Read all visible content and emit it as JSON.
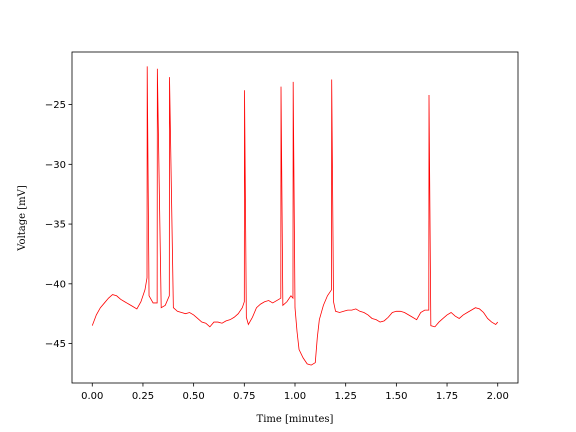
{
  "chart_data": {
    "type": "line",
    "xlabel": "Time [minutes]",
    "ylabel": "Voltage [mV]",
    "xlim": [
      -0.1,
      2.1
    ],
    "ylim": [
      -48.3,
      -20.6
    ],
    "xticks": [
      {
        "value": 0,
        "label": "0.00"
      },
      {
        "value": 0.25,
        "label": "0.25"
      },
      {
        "value": 0.5,
        "label": "0.50"
      },
      {
        "value": 0.75,
        "label": "0.75"
      },
      {
        "value": 1,
        "label": "1.00"
      },
      {
        "value": 1.25,
        "label": "1.25"
      },
      {
        "value": 1.5,
        "label": "1.50"
      },
      {
        "value": 1.75,
        "label": "1.75"
      },
      {
        "value": 2,
        "label": "2.00"
      }
    ],
    "yticks": [
      {
        "value": -45,
        "label": "−45"
      },
      {
        "value": -40,
        "label": "−40"
      },
      {
        "value": -35,
        "label": "−35"
      },
      {
        "value": -30,
        "label": "−30"
      },
      {
        "value": -25,
        "label": "−25"
      }
    ],
    "grid": false,
    "series": [
      {
        "color": "#ff0000",
        "x": [
          0,
          0.02,
          0.04,
          0.06,
          0.08,
          0.1,
          0.12,
          0.14,
          0.16,
          0.18,
          0.2,
          0.22,
          0.24,
          0.26,
          0.27,
          0.271,
          0.28,
          0.3,
          0.32,
          0.321,
          0.34,
          0.36,
          0.38,
          0.381,
          0.4,
          0.42,
          0.44,
          0.46,
          0.48,
          0.5,
          0.52,
          0.54,
          0.56,
          0.58,
          0.6,
          0.62,
          0.64,
          0.66,
          0.68,
          0.7,
          0.72,
          0.74,
          0.75,
          0.751,
          0.76,
          0.77,
          0.79,
          0.81,
          0.83,
          0.85,
          0.87,
          0.89,
          0.91,
          0.93,
          0.931,
          0.94,
          0.96,
          0.98,
          0.99,
          0.991,
          1,
          1.01,
          1.02,
          1.04,
          1.06,
          1.08,
          1.1,
          1.11,
          1.12,
          1.14,
          1.16,
          1.18,
          1.181,
          1.19,
          1.2,
          1.22,
          1.24,
          1.26,
          1.28,
          1.3,
          1.32,
          1.34,
          1.36,
          1.38,
          1.4,
          1.42,
          1.44,
          1.46,
          1.48,
          1.5,
          1.52,
          1.54,
          1.56,
          1.58,
          1.6,
          1.62,
          1.64,
          1.66,
          1.661,
          1.67,
          1.69,
          1.71,
          1.73,
          1.75,
          1.77,
          1.79,
          1.81,
          1.83,
          1.85,
          1.87,
          1.89,
          1.91,
          1.93,
          1.95,
          1.97,
          1.99,
          2
        ],
        "values": [
          -43.5,
          -42.6,
          -42,
          -41.6,
          -41.2,
          -40.9,
          -41,
          -41.3,
          -41.5,
          -41.7,
          -41.9,
          -42.1,
          -41.5,
          -40.5,
          -39.5,
          -21.8,
          -41,
          -41.6,
          -41.6,
          -22,
          -42,
          -41.8,
          -41,
          -22.7,
          -42,
          -42.3,
          -42.4,
          -42.5,
          -42.4,
          -42.6,
          -42.9,
          -43.2,
          -43.3,
          -43.6,
          -43.2,
          -43.2,
          -43.3,
          -43.1,
          -43,
          -42.8,
          -42.5,
          -42,
          -41.5,
          -23.8,
          -42.8,
          -43.4,
          -42.8,
          -42,
          -41.7,
          -41.5,
          -41.4,
          -41.6,
          -41.4,
          -41.2,
          -23.5,
          -41.8,
          -41.5,
          -41,
          -41.2,
          -23.1,
          -42,
          -44,
          -45.5,
          -46.2,
          -46.7,
          -46.8,
          -46.6,
          -44.5,
          -43,
          -41.8,
          -41,
          -40.5,
          -22.9,
          -41.5,
          -42.3,
          -42.4,
          -42.3,
          -42.2,
          -42.2,
          -42.1,
          -42.3,
          -42.4,
          -42.6,
          -42.9,
          -43,
          -43.2,
          -43.1,
          -42.8,
          -42.4,
          -42.3,
          -42.3,
          -42.4,
          -42.6,
          -42.8,
          -43,
          -42.4,
          -42.2,
          -42.2,
          -24.2,
          -43.5,
          -43.6,
          -43.2,
          -42.9,
          -42.6,
          -42.4,
          -42.7,
          -42.9,
          -42.6,
          -42.4,
          -42.2,
          -42,
          -42.1,
          -42.4,
          -42.9,
          -43.2,
          -43.4,
          -43.2
        ]
      }
    ]
  }
}
